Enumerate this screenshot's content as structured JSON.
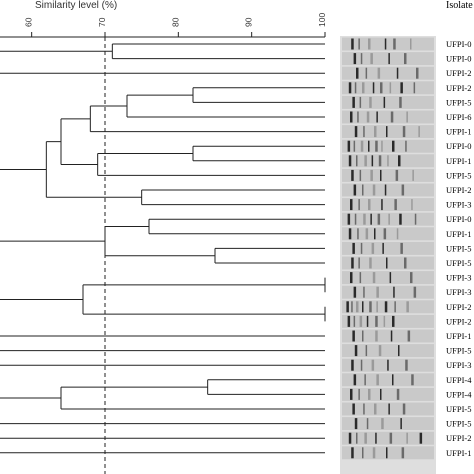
{
  "scale": {
    "title": "Similarity level (%)",
    "ticks": [
      60,
      70,
      80,
      90,
      100
    ],
    "tick_labels": [
      "60",
      "70",
      "80",
      "90",
      "100"
    ],
    "cutoff": 70
  },
  "columns": {
    "isolates_header": "Isolate"
  },
  "isolates": [
    "UFPI-0",
    "UFPI-0",
    "UFPI-2",
    "UFPI-2",
    "UFPI-5",
    "UFPI-6",
    "UFPI-1",
    "UFPI-0",
    "UFPI-1",
    "UFPI-5",
    "UFPI-2",
    "UFPI-3",
    "UFPI-0",
    "UFPI-1",
    "UFPI-5",
    "UFPI-5",
    "UFPI-3",
    "UFPI-3",
    "UFPI-2",
    "UFPI-2",
    "UFPI-1",
    "UFPI-5",
    "UFPI-3",
    "UFPI-4",
    "UFPI-4",
    "UFPI-5",
    "UFPI-5",
    "UFPI-2",
    "UFPI-1"
  ],
  "colors": {
    "line": "#222222",
    "text": "#333333",
    "gel_background": "#dedede"
  }
}
